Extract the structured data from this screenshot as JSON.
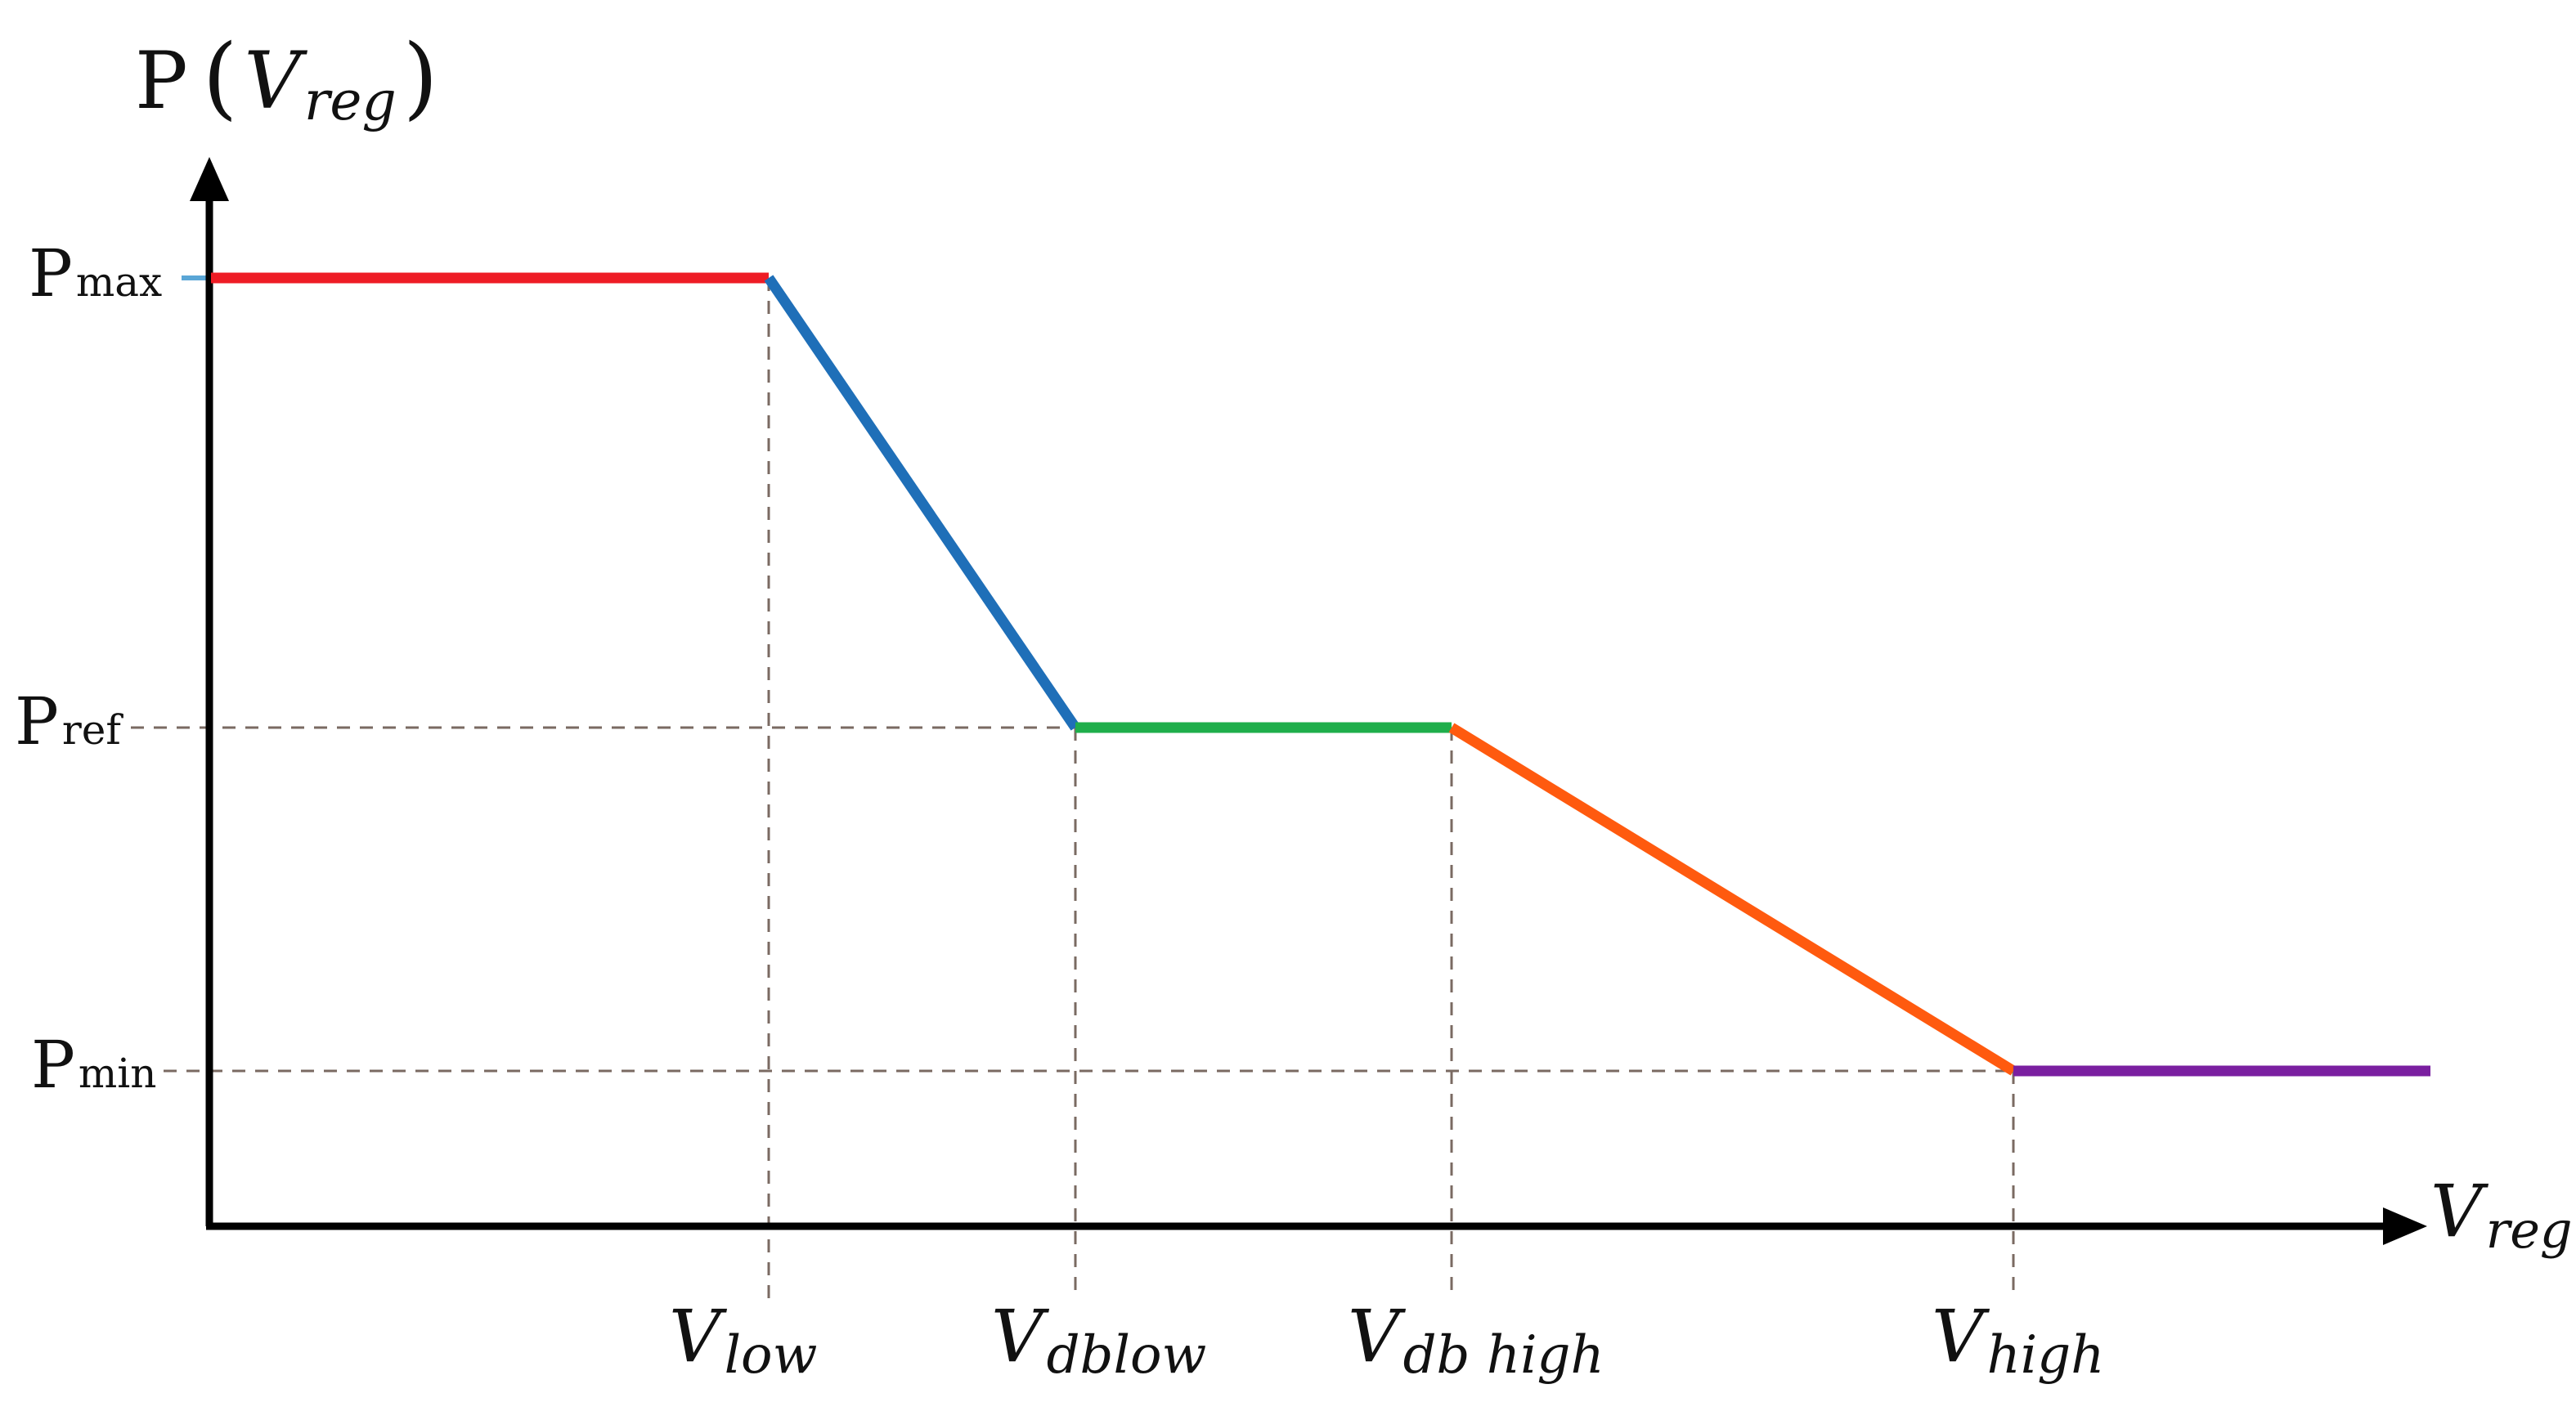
{
  "axes": {
    "y_label": {
      "main": "P",
      "open": "(",
      "var": "V",
      "sub": "reg",
      "close": ")"
    },
    "x_label": {
      "var": "V",
      "sub": "reg"
    }
  },
  "levels": [
    {
      "id": "pmax",
      "main": "P",
      "sub": "max"
    },
    {
      "id": "pref",
      "main": "P",
      "sub": "ref"
    },
    {
      "id": "pmin",
      "main": "P",
      "sub": "min"
    }
  ],
  "breakpoints": [
    {
      "id": "vlow",
      "main": "V",
      "sub": "low"
    },
    {
      "id": "vdblow",
      "main": "V",
      "sub": "dblow"
    },
    {
      "id": "vdbhigh",
      "main": "V",
      "sub": "db high"
    },
    {
      "id": "vhigh",
      "main": "V",
      "sub": "high"
    }
  ],
  "segments": [
    {
      "id": "segment-max-plateau",
      "color": "#ee1c25"
    },
    {
      "id": "segment-low-slope",
      "color": "#1f6fb8"
    },
    {
      "id": "segment-deadband",
      "color": "#1fae4b"
    },
    {
      "id": "segment-high-slope",
      "color": "#ff5a0f"
    },
    {
      "id": "segment-min-plateau",
      "color": "#7a1fa0"
    }
  ]
}
